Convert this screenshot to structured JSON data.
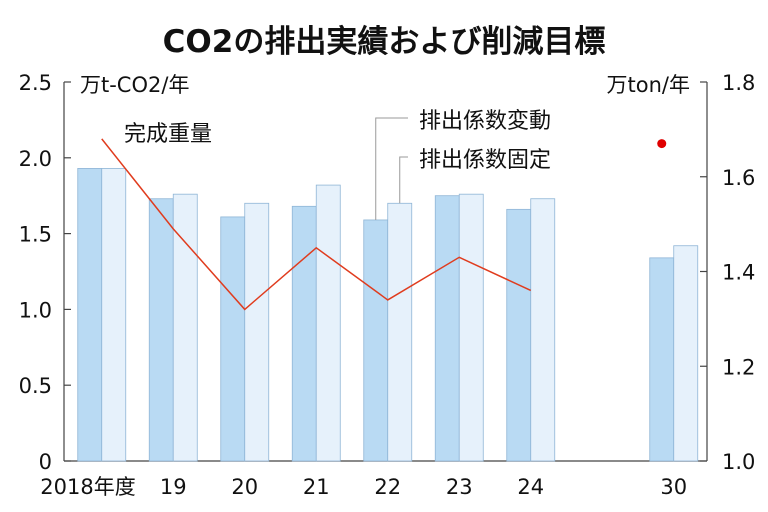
{
  "chart_data": {
    "type": "bar",
    "title": "CO2の排出実績および削減目標",
    "categories": [
      "2018年度",
      "19",
      "20",
      "21",
      "22",
      "23",
      "24",
      "30"
    ],
    "series": [
      {
        "name": "排出係数変動",
        "axis": "left",
        "values": [
          1.93,
          1.73,
          1.61,
          1.68,
          1.59,
          1.75,
          1.66,
          1.34
        ],
        "color": "#b9daf3"
      },
      {
        "name": "排出係数固定",
        "axis": "left",
        "values": [
          1.93,
          1.76,
          1.7,
          1.82,
          1.7,
          1.76,
          1.73,
          1.42
        ],
        "color": "#e6f1fb"
      },
      {
        "name": "完成重量",
        "axis": "right",
        "type": "line",
        "values": [
          1.68,
          1.49,
          1.32,
          1.45,
          1.34,
          1.43,
          1.36,
          null
        ],
        "color": "#e03c1e"
      }
    ],
    "target_point": {
      "series": "完成重量",
      "category": "30",
      "value": 1.67,
      "color": "#e00000"
    },
    "left_axis": {
      "unit": "万t-CO2/年",
      "ylim": [
        0,
        2.5
      ],
      "ticks": [
        "0",
        "0.5",
        "1.0",
        "1.5",
        "2.0",
        "2.5"
      ]
    },
    "right_axis": {
      "unit": "万ton/年",
      "ylim": [
        1.0,
        1.8
      ],
      "ticks": [
        "1.0",
        "1.2",
        "1.4",
        "1.6",
        "1.8"
      ]
    },
    "grid": false,
    "legend": "inline-annotations"
  }
}
